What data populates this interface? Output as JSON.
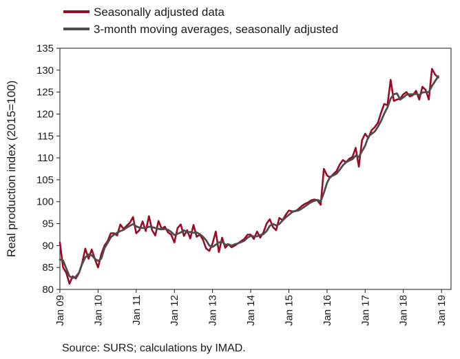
{
  "source": "Source: SURS; calculations by IMAD.",
  "chart_data": {
    "type": "line",
    "title": "",
    "ylabel": "Real production index (2015=100)",
    "xlabel": "",
    "ylim": [
      80,
      135
    ],
    "yticks": [
      80,
      85,
      90,
      95,
      100,
      105,
      110,
      115,
      120,
      125,
      130,
      135
    ],
    "xlim": [
      0,
      123
    ],
    "xticks": [
      {
        "label": "Jan 09",
        "x": 0
      },
      {
        "label": "Jan 10",
        "x": 12
      },
      {
        "label": "Jan 11",
        "x": 24
      },
      {
        "label": "Jan 12",
        "x": 36
      },
      {
        "label": "Jan 13",
        "x": 48
      },
      {
        "label": "Jan 14",
        "x": 60
      },
      {
        "label": "Jan 15",
        "x": 72
      },
      {
        "label": "Jan 16",
        "x": 84
      },
      {
        "label": "Jan 17",
        "x": 96
      },
      {
        "label": "Jan 18",
        "x": 108
      },
      {
        "label": "Jan 19",
        "x": 120
      }
    ],
    "grid": false,
    "legend_position": "top-left",
    "series": [
      {
        "name": "Seasonally adjusted data",
        "color": "#9b0a24",
        "values": [
          90.7,
          85.0,
          83.8,
          81.3,
          83.0,
          82.5,
          83.7,
          86.0,
          89.3,
          87.0,
          89.1,
          86.9,
          85.0,
          88.0,
          90.0,
          91.0,
          92.8,
          92.8,
          92.3,
          94.8,
          93.8,
          94.5,
          95.2,
          96.5,
          92.8,
          93.5,
          95.5,
          93.3,
          96.7,
          93.5,
          92.3,
          95.6,
          93.8,
          94.3,
          93.0,
          92.5,
          90.7,
          94.0,
          94.8,
          92.2,
          93.5,
          91.6,
          94.7,
          92.0,
          92.5,
          91.3,
          89.3,
          88.8,
          90.5,
          93.2,
          88.5,
          91.8,
          89.5,
          90.3,
          89.6,
          90.0,
          90.5,
          91.0,
          91.5,
          92.5,
          92.5,
          91.5,
          93.2,
          91.8,
          93.0,
          95.0,
          96.0,
          94.2,
          93.5,
          96.3,
          95.8,
          97.0,
          98.0,
          97.8,
          97.8,
          98.3,
          99.0,
          99.5,
          99.8,
          100.3,
          100.5,
          100.3,
          99.3,
          107.5,
          106.0,
          105.5,
          106.3,
          107.0,
          108.5,
          109.5,
          109.0,
          109.8,
          110.2,
          112.3,
          108.0,
          114.0,
          115.5,
          114.5,
          116.3,
          117.0,
          118.0,
          120.3,
          122.3,
          122.0,
          127.8,
          123.0,
          123.3,
          123.5,
          124.5,
          125.0,
          124.0,
          124.3,
          125.3,
          123.3,
          126.2,
          125.5,
          123.3,
          130.3,
          129.0,
          128.3
        ]
      },
      {
        "name": "3-month moving averages, seasonally adjusted",
        "color": "#4d4d4d",
        "values": [
          86.8,
          86.6,
          84.8,
          83.0,
          82.6,
          82.9,
          83.8,
          85.8,
          87.3,
          88.0,
          87.8,
          87.0,
          86.5,
          87.0,
          89.4,
          90.6,
          91.9,
          92.5,
          92.9,
          93.3,
          93.6,
          94.1,
          94.5,
          94.9,
          94.4,
          94.1,
          94.0,
          94.0,
          94.3,
          94.2,
          94.0,
          93.8,
          93.7,
          93.8,
          93.6,
          93.1,
          92.4,
          92.7,
          93.0,
          93.5,
          93.0,
          93.1,
          92.9,
          93.0,
          92.6,
          92.0,
          91.2,
          90.0,
          89.7,
          90.2,
          90.7,
          90.9,
          90.2,
          90.3,
          90.0,
          90.3,
          90.5,
          90.8,
          91.1,
          91.8,
          92.2,
          92.1,
          92.1,
          92.4,
          92.6,
          93.3,
          94.5,
          94.9,
          94.6,
          94.9,
          95.7,
          96.4,
          97.0,
          97.6,
          97.9,
          98.0,
          98.4,
          98.9,
          99.4,
          99.9,
          100.2,
          100.4,
          100.1,
          102.0,
          104.3,
          105.7,
          106.0,
          106.4,
          107.3,
          108.3,
          109.0,
          109.4,
          109.7,
          110.5,
          110.2,
          111.5,
          112.8,
          114.8,
          115.5,
          116.0,
          117.1,
          118.4,
          120.1,
          121.5,
          123.5,
          124.5,
          124.7,
          123.3,
          123.8,
          124.4,
          124.5,
          124.5,
          124.6,
          124.3,
          124.9,
          125.0,
          125.0,
          126.4,
          127.5,
          128.6
        ]
      }
    ]
  }
}
